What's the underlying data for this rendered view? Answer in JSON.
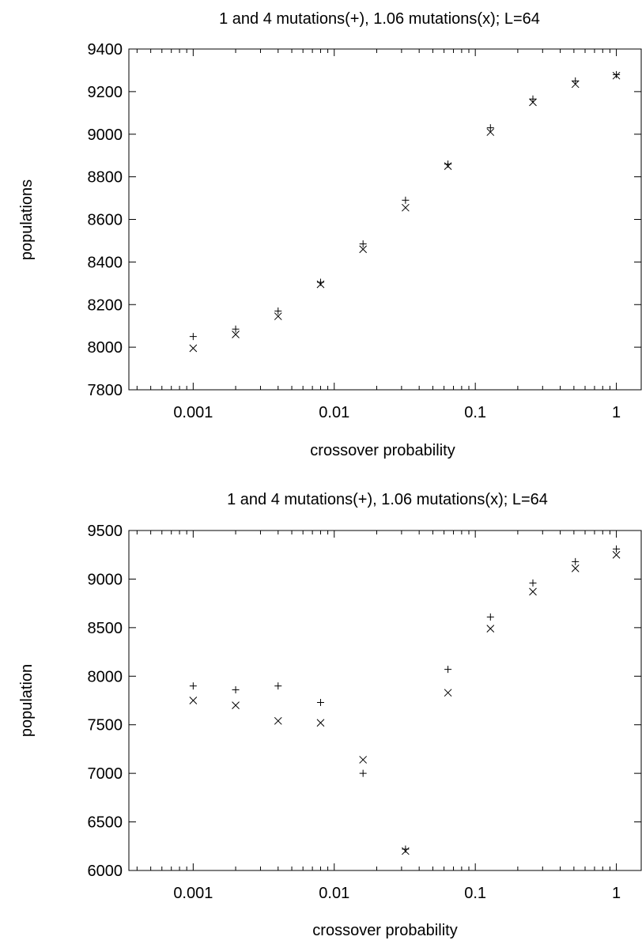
{
  "chart_data": [
    {
      "type": "scatter",
      "title": "1 and 4 mutations(+), 1.06 mutations(x); L=64",
      "xlabel": "crossover probability",
      "ylabel": "populations",
      "xscale": "log",
      "xlim": [
        0.00035,
        1.5
      ],
      "ylim": [
        7800,
        9400
      ],
      "xticks": [
        0.001,
        0.01,
        0.1,
        1
      ],
      "xtick_labels": [
        "0.001",
        "0.01",
        "0.1",
        "1"
      ],
      "yticks": [
        7800,
        8000,
        8200,
        8400,
        8600,
        8800,
        9000,
        9200,
        9400
      ],
      "ytick_labels": [
        "7800",
        "8000",
        "8200",
        "8400",
        "8600",
        "8800",
        "9000",
        "9200",
        "9400"
      ],
      "x": [
        0.001,
        0.002,
        0.004,
        0.008,
        0.016,
        0.032,
        0.064,
        0.128,
        0.256,
        0.512,
        1
      ],
      "series": [
        {
          "marker": "plus",
          "values": [
            8050,
            8085,
            8170,
            8305,
            8485,
            8690,
            8860,
            9030,
            9165,
            9250,
            9280
          ]
        },
        {
          "marker": "cross",
          "values": [
            7995,
            8060,
            8145,
            8295,
            8460,
            8655,
            8850,
            9010,
            9150,
            9235,
            9275
          ]
        }
      ],
      "grid": false,
      "legend": "none"
    },
    {
      "type": "scatter",
      "title": "1 and 4 mutations(+), 1.06 mutations(x); L=64",
      "xlabel": "crossover probability",
      "ylabel": "population",
      "xscale": "log",
      "xlim": [
        0.00035,
        1.5
      ],
      "ylim": [
        6000,
        9500
      ],
      "xticks": [
        0.001,
        0.01,
        0.1,
        1
      ],
      "xtick_labels": [
        "0.001",
        "0.01",
        "0.1",
        "1"
      ],
      "yticks": [
        6000,
        6500,
        7000,
        7500,
        8000,
        8500,
        9000,
        9500
      ],
      "ytick_labels": [
        "6000",
        "6500",
        "7000",
        "7500",
        "8000",
        "8500",
        "9000",
        "9500"
      ],
      "x": [
        0.001,
        0.002,
        0.004,
        0.008,
        0.016,
        0.032,
        0.064,
        0.128,
        0.256,
        0.512,
        1
      ],
      "series": [
        {
          "marker": "plus",
          "values": [
            7900,
            7860,
            7900,
            7730,
            7000,
            6220,
            8070,
            8610,
            8960,
            9180,
            9310
          ]
        },
        {
          "marker": "cross",
          "values": [
            7750,
            7700,
            7540,
            7520,
            7140,
            6200,
            7830,
            8490,
            8870,
            9110,
            9250
          ]
        }
      ],
      "grid": false,
      "legend": "none"
    }
  ]
}
